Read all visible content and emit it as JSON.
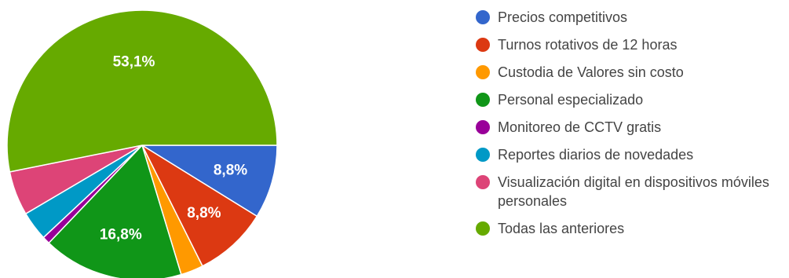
{
  "chart_data": {
    "type": "pie",
    "legend_position": "right",
    "series": [
      {
        "values": [
          8.8,
          8.8,
          2.7,
          16.8,
          0.9,
          3.5,
          5.3,
          53.1
        ],
        "labels": [
          "Precios competitivos",
          "Turnos rotativos de 12 horas",
          "Custodia de Valores sin costo",
          "Personal especializado",
          "Monitoreo de CCTV gratis",
          "Reportes diarios de novedades",
          "Visualización digital en dispositivos móviles personales",
          "Todas las anteriores"
        ],
        "display_labels": [
          "8,8%",
          "8,8%",
          "",
          "16,8%",
          "",
          "",
          "",
          "53,1%"
        ],
        "colors": [
          "#3366cc",
          "#dc3912",
          "#ff9900",
          "#109618",
          "#990099",
          "#0099c6",
          "#dd4477",
          "#66aa00"
        ]
      }
    ]
  }
}
